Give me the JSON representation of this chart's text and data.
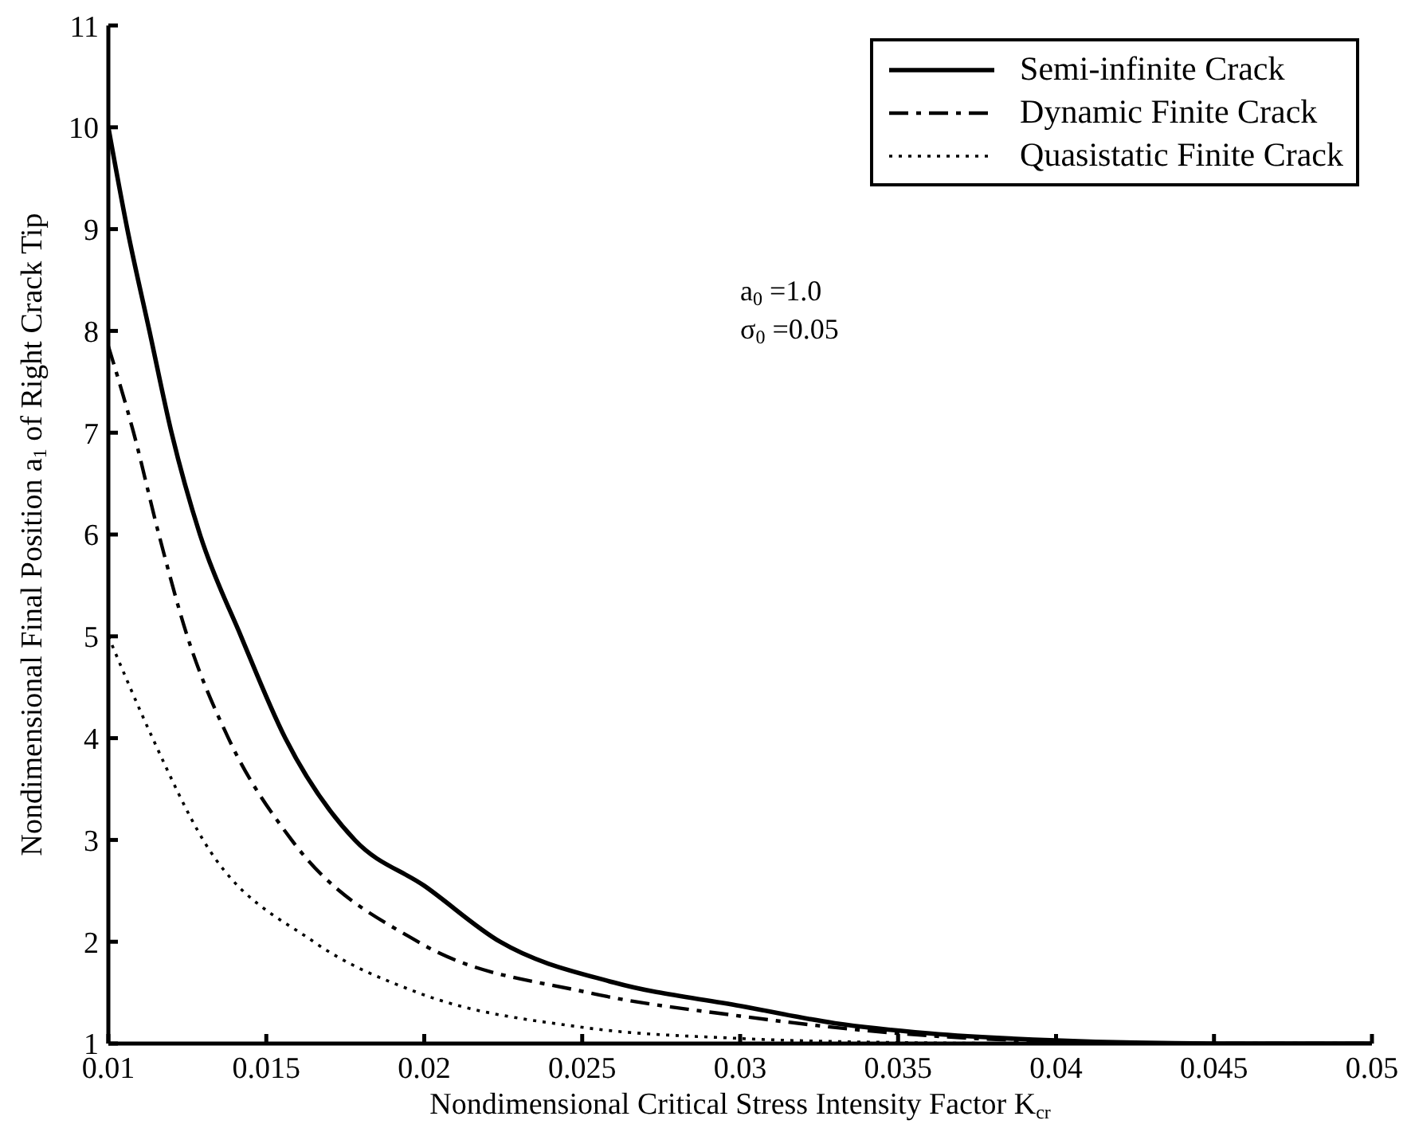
{
  "chart_data": {
    "type": "line",
    "xlabel": "Nondimensional Critical Stress Intensity Factor K$_{cr}$",
    "ylabel": "Nondimensional Final Position a$_{1}$ of Right Crack Tip",
    "xlim": [
      0.01,
      0.05
    ],
    "ylim": [
      1,
      11
    ],
    "xticks": [
      0.01,
      0.015,
      0.02,
      0.025,
      0.03,
      0.035,
      0.04,
      0.045,
      0.05
    ],
    "yticks": [
      1,
      2,
      3,
      4,
      5,
      6,
      7,
      8,
      9,
      10,
      11
    ],
    "legend": "top right",
    "marker": "none",
    "annotations": [
      "a$_{0}$=1.0",
      "σ$_{0}$=0.05"
    ],
    "series": [
      {
        "name": "Semi-infinite Crack",
        "color": "#000000",
        "line_style": "solid",
        "x": [
          0.01,
          0.0106,
          0.0113,
          0.012,
          0.0129,
          0.0142,
          0.0156,
          0.0178,
          0.02,
          0.0224,
          0.026,
          0.03,
          0.033,
          0.036,
          0.04,
          0.045,
          0.05
        ],
        "values": [
          10,
          9,
          8,
          7,
          6,
          5,
          4,
          3,
          2.55,
          2,
          1.6,
          1.37,
          1.2,
          1.1,
          1.03,
          1,
          1
        ]
      },
      {
        "name": "Dynamic Finite Crack",
        "color": "#000000",
        "line_style": "dashed",
        "x": [
          0.01,
          0.0108,
          0.0116,
          0.0125,
          0.0138,
          0.0158,
          0.0198,
          0.0252,
          0.03,
          0.035,
          0.04,
          0.045,
          0.05
        ],
        "values": [
          7.85,
          7,
          6,
          5,
          4,
          3,
          2,
          1.5,
          1.27,
          1.1,
          1.02,
          1,
          1
        ]
      },
      {
        "name": "Quasistatic Finite Crack",
        "color": "#000000",
        "line_style": "dotted",
        "x": [
          0.01,
          0.0114,
          0.013,
          0.0165,
          0.0198,
          0.025,
          0.03,
          0.035,
          0.04,
          0.045,
          0.05
        ],
        "values": [
          5,
          4,
          3,
          2,
          1.5,
          1.16,
          1.05,
          1.01,
          1,
          1,
          1
        ]
      }
    ]
  }
}
